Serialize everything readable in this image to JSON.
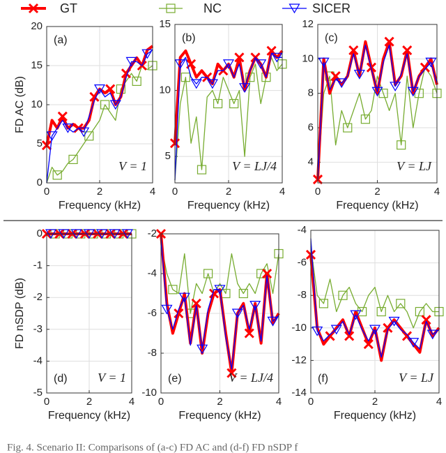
{
  "chart_data": [
    {
      "type": "line",
      "panel_label": "(a)",
      "annotation": "V = 1",
      "ylabel": "FD AC (dB)",
      "xlabel": "Frequency (kHz)",
      "x": [
        0,
        0.2,
        0.4,
        0.6,
        0.8,
        1,
        1.2,
        1.4,
        1.6,
        1.8,
        2,
        2.2,
        2.4,
        2.6,
        2.8,
        3,
        3.2,
        3.4,
        3.6,
        3.8,
        4
      ],
      "xlim": [
        0,
        4
      ],
      "xticks": [
        0,
        2,
        4
      ],
      "ylim": [
        0,
        20
      ],
      "yticks": [
        0,
        5,
        10,
        15,
        20
      ],
      "grid": true,
      "series": [
        {
          "name": "GT",
          "color": "#ff0000",
          "marker": "x",
          "values": [
            4.8,
            8,
            7,
            8.5,
            7,
            7.5,
            7,
            7,
            8,
            11,
            12,
            11.5,
            12,
            10,
            11,
            14,
            15,
            16,
            15,
            17,
            17.5
          ]
        },
        {
          "name": "NC",
          "color": "#77ac30",
          "marker": "square",
          "values": [
            0,
            2,
            1,
            1.5,
            2.5,
            3,
            4,
            5,
            6,
            7,
            8,
            10,
            9,
            8,
            12,
            13,
            14,
            13,
            15,
            14.5,
            15
          ]
        },
        {
          "name": "SICER",
          "color": "#0000ff",
          "marker": "triangle",
          "values": [
            0,
            6,
            7,
            8,
            7,
            6.5,
            7,
            6.5,
            8.5,
            10.5,
            12,
            11,
            11.5,
            10,
            11,
            13.5,
            15.5,
            15.5,
            15,
            16.5,
            17
          ]
        }
      ]
    },
    {
      "type": "line",
      "panel_label": "(b)",
      "annotation": "V = LJ/4",
      "xlabel": "Frequency (kHz)",
      "x": [
        0,
        0.2,
        0.4,
        0.6,
        0.8,
        1,
        1.2,
        1.4,
        1.6,
        1.8,
        2,
        2.2,
        2.4,
        2.6,
        2.8,
        3,
        3.2,
        3.4,
        3.6,
        3.8,
        4
      ],
      "xlim": [
        0,
        4
      ],
      "xticks": [
        0,
        2,
        4
      ],
      "ylim": [
        3,
        15
      ],
      "yticks": [
        5,
        10,
        15
      ],
      "grid": true,
      "series": [
        {
          "name": "GT",
          "color": "#ff0000",
          "marker": "x",
          "values": [
            6,
            12.5,
            13,
            12,
            11,
            11.5,
            11,
            10.5,
            12,
            11.5,
            12,
            11,
            12.5,
            10,
            11.5,
            12.5,
            12,
            11,
            13,
            12.5,
            13
          ]
        },
        {
          "name": "NC",
          "color": "#77ac30",
          "marker": "square",
          "values": [
            3.2,
            9,
            11,
            6,
            8,
            4,
            9.5,
            10,
            9,
            11,
            10,
            9,
            10,
            5,
            11,
            12,
            9,
            11,
            12.5,
            11.5,
            12
          ]
        },
        {
          "name": "SICER",
          "color": "#0000ff",
          "marker": "triangle",
          "values": [
            3.2,
            12,
            12.5,
            11,
            10.5,
            11,
            11,
            10.5,
            11.5,
            11.5,
            12,
            11,
            12,
            10.2,
            11.5,
            12.5,
            12,
            11,
            12.8,
            12.5,
            12.5
          ]
        }
      ]
    },
    {
      "type": "line",
      "panel_label": "(c)",
      "annotation": "V = LJ",
      "xlabel": "Frequency (kHz)",
      "x": [
        0,
        0.2,
        0.4,
        0.6,
        0.8,
        1,
        1.2,
        1.4,
        1.6,
        1.8,
        2,
        2.2,
        2.4,
        2.6,
        2.8,
        3,
        3.2,
        3.4,
        3.6,
        3.8,
        4
      ],
      "xlim": [
        0,
        4
      ],
      "xticks": [
        0,
        2,
        4
      ],
      "ylim": [
        2.8,
        12
      ],
      "yticks": [
        4,
        6,
        8,
        10,
        12
      ],
      "grid": true,
      "series": [
        {
          "name": "GT",
          "color": "#ff0000",
          "marker": "x",
          "values": [
            3,
            10,
            8,
            9,
            8.5,
            9,
            10.5,
            9,
            11,
            9.5,
            8,
            10,
            11,
            8.5,
            9,
            10.5,
            8,
            9,
            9.5,
            10,
            8.5
          ]
        },
        {
          "name": "NC",
          "color": "#77ac30",
          "marker": "square",
          "values": [
            3,
            8,
            9,
            5,
            7,
            6,
            7,
            8,
            6.5,
            7,
            9,
            8,
            7,
            8,
            5,
            9,
            6,
            8,
            9.5,
            9,
            8
          ]
        },
        {
          "name": "SICER",
          "color": "#0000ff",
          "marker": "triangle",
          "values": [
            3,
            9.8,
            8.2,
            8.8,
            8.6,
            9,
            10.3,
            9.1,
            10.8,
            9.4,
            8.1,
            9.8,
            10.8,
            8.4,
            9.1,
            10.3,
            8.1,
            9,
            9.4,
            9.8,
            8.6
          ]
        }
      ]
    },
    {
      "type": "line",
      "panel_label": "(d)",
      "annotation": "V = 1",
      "ylabel": "FD nSDP (dB)",
      "xlabel": "Frequency (kHz)",
      "x": [
        0,
        0.2,
        0.4,
        0.6,
        0.8,
        1,
        1.2,
        1.4,
        1.6,
        1.8,
        2,
        2.2,
        2.4,
        2.6,
        2.8,
        3,
        3.2,
        3.4,
        3.6,
        3.8,
        4
      ],
      "xlim": [
        0,
        4
      ],
      "xticks": [
        0,
        2,
        4
      ],
      "ylim": [
        -5,
        0
      ],
      "yticks": [
        -5,
        -4,
        -3,
        -2,
        -1,
        0
      ],
      "grid": true,
      "series": [
        {
          "name": "GT",
          "color": "#ff0000",
          "marker": "x",
          "values": [
            0,
            0,
            0,
            0,
            0,
            0,
            0,
            0,
            0,
            0,
            0,
            0,
            0,
            0,
            0,
            0,
            0,
            0,
            0,
            0,
            0
          ]
        },
        {
          "name": "NC",
          "color": "#77ac30",
          "marker": "square",
          "values": [
            0,
            0,
            0,
            0,
            0,
            0,
            0,
            0,
            0,
            0,
            0,
            0,
            0,
            0,
            0,
            0,
            0,
            0,
            0,
            0,
            0
          ]
        },
        {
          "name": "SICER",
          "color": "#0000ff",
          "marker": "triangle",
          "values": [
            0,
            0,
            0,
            0,
            0,
            0,
            0,
            0,
            0,
            0,
            0,
            0,
            0,
            0,
            0,
            0,
            0,
            0,
            0,
            0,
            0
          ]
        }
      ]
    },
    {
      "type": "line",
      "panel_label": "(e)",
      "annotation": "V = LJ/4",
      "xlabel": "Frequency (kHz)",
      "x": [
        0,
        0.2,
        0.4,
        0.6,
        0.8,
        1,
        1.2,
        1.4,
        1.6,
        1.8,
        2,
        2.2,
        2.4,
        2.6,
        2.8,
        3,
        3.2,
        3.4,
        3.6,
        3.8,
        4
      ],
      "xlim": [
        0,
        4
      ],
      "xticks": [
        0,
        2,
        4
      ],
      "ylim": [
        -10,
        -2
      ],
      "yticks": [
        -10,
        -8,
        -6,
        -4,
        -2
      ],
      "grid": true,
      "series": [
        {
          "name": "GT",
          "color": "#ff0000",
          "marker": "x",
          "values": [
            -2,
            -5.5,
            -7,
            -6,
            -5,
            -7.5,
            -5.5,
            -8,
            -6,
            -5,
            -4.8,
            -7,
            -9,
            -6,
            -5.5,
            -7,
            -5.5,
            -7.5,
            -4,
            -6.5,
            -6
          ]
        },
        {
          "name": "NC",
          "color": "#77ac30",
          "marker": "square",
          "values": [
            -2.5,
            -4,
            -4.8,
            -5,
            -3,
            -6,
            -4.5,
            -5,
            -4,
            -5,
            -4.5,
            -5,
            -3,
            -4.5,
            -5,
            -4.5,
            -5,
            -4,
            -3.5,
            -5,
            -3
          ]
        },
        {
          "name": "SICER",
          "color": "#0000ff",
          "marker": "triangle",
          "values": [
            -2.2,
            -5.8,
            -6.8,
            -5.8,
            -5.2,
            -7.6,
            -5.6,
            -7.8,
            -5.8,
            -4.8,
            -4.8,
            -7.2,
            -8.8,
            -6,
            -5.6,
            -6.8,
            -5.6,
            -7.4,
            -4.1,
            -6.4,
            -6.1
          ]
        }
      ]
    },
    {
      "type": "line",
      "panel_label": "(f)",
      "annotation": "V = LJ",
      "xlabel": "Frequency (kHz)",
      "x": [
        0,
        0.2,
        0.4,
        0.6,
        0.8,
        1,
        1.2,
        1.4,
        1.6,
        1.8,
        2,
        2.2,
        2.4,
        2.6,
        2.8,
        3,
        3.2,
        3.4,
        3.6,
        3.8,
        4
      ],
      "xlim": [
        0,
        4
      ],
      "xticks": [
        0,
        2,
        4
      ],
      "ylim": [
        -14,
        -4
      ],
      "yticks": [
        -14,
        -12,
        -10,
        -8,
        -6,
        -4
      ],
      "grid": true,
      "series": [
        {
          "name": "GT",
          "color": "#ff0000",
          "marker": "x",
          "values": [
            -5.5,
            -10,
            -11,
            -10.5,
            -10,
            -9.5,
            -10.5,
            -9,
            -10,
            -11,
            -10,
            -12,
            -10,
            -9.5,
            -10,
            -10.5,
            -11,
            -11.5,
            -9.5,
            -10.5,
            -10
          ]
        },
        {
          "name": "NC",
          "color": "#77ac30",
          "marker": "square",
          "values": [
            -5,
            -8,
            -8.5,
            -7,
            -9,
            -8,
            -7.5,
            -8.5,
            -9,
            -8,
            -7.5,
            -9,
            -8,
            -9,
            -8.5,
            -9,
            -10,
            -9,
            -8.5,
            -9,
            -9
          ]
        },
        {
          "name": "SICER",
          "color": "#0000ff",
          "marker": "triangle",
          "values": [
            -4.5,
            -10.2,
            -10.8,
            -10.4,
            -10.1,
            -9.6,
            -10.4,
            -9.2,
            -10.1,
            -10.8,
            -10.1,
            -11.8,
            -10.1,
            -9.6,
            -10.1,
            -10.4,
            -10.9,
            -11.3,
            -9.6,
            -10.4,
            -10.1
          ]
        }
      ]
    }
  ],
  "caption": "Fig. 4.   Scenario II: Comparisons of (a-c) FD AC and (d-f) FD nSDP f"
}
